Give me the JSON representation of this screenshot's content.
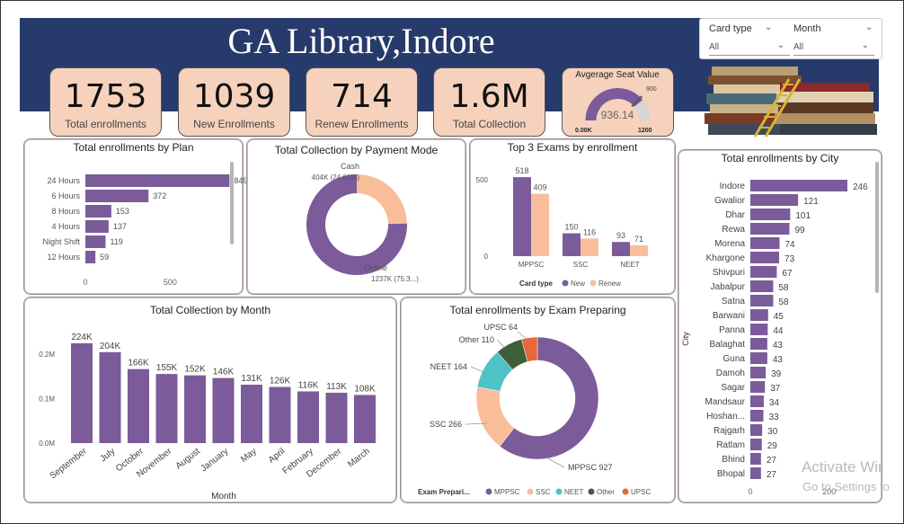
{
  "header": {
    "title": "GA Library,Indore"
  },
  "kpis": [
    {
      "value": "1753",
      "label": "Total enrollments"
    },
    {
      "value": "1039",
      "label": "New Enrollments"
    },
    {
      "value": "714",
      "label": "Renew Enrollments"
    },
    {
      "value": "1.6M",
      "label": "Total Collection"
    }
  ],
  "gauge": {
    "title": "Avgerage Seat Value",
    "value": 936.14,
    "value_label": "936.14",
    "min_label": "0.00K",
    "max_label": "1200",
    "target_label": "900",
    "min": 0,
    "max": 1200,
    "target": 900
  },
  "slicers": {
    "card_type": {
      "label": "Card type",
      "selected": "All"
    },
    "month": {
      "label": "Month",
      "selected": "All"
    }
  },
  "colors": {
    "primary": "#7b5b9a",
    "secondary": "#f9bd9a",
    "teal": "#4fc2c8",
    "green": "#3f5e3a",
    "orange": "#e8673b",
    "banner": "#263a6b",
    "card": "#f6d2bd"
  },
  "chart_data": [
    {
      "id": "plan",
      "type": "bar",
      "orientation": "horizontal",
      "title": "Total enrollments by Plan",
      "categories": [
        "24 Hours",
        "6 Hours",
        "8 Hours",
        "4 Hours",
        "Night Shift",
        "12 Hours"
      ],
      "values": [
        849,
        372,
        153,
        137,
        119,
        59
      ],
      "x_ticks": [
        "0",
        "500"
      ],
      "xlim": [
        0,
        900
      ]
    },
    {
      "id": "payment",
      "type": "pie",
      "subtype": "donut",
      "title": "Total Collection by Payment Mode",
      "slices": [
        {
          "name": "Online",
          "value": 1237,
          "label": "1237K (75.3...)"
        },
        {
          "name": "Cash",
          "value": 404,
          "label": "404K (24.61%)"
        }
      ]
    },
    {
      "id": "exams",
      "type": "bar",
      "title": "Top 3 Exams by enrollment",
      "categories": [
        "MPPSC",
        "SSC",
        "NEET"
      ],
      "series": [
        {
          "name": "New",
          "values": [
            518,
            150,
            93
          ]
        },
        {
          "name": "Renew",
          "values": [
            409,
            116,
            71
          ]
        }
      ],
      "y_ticks": [
        "0",
        "500"
      ],
      "ylim": [
        0,
        560
      ],
      "legend_title": "Card type",
      "legend_position": "bottom"
    },
    {
      "id": "city",
      "type": "bar",
      "orientation": "horizontal",
      "title": "Total enrollments by City",
      "ylabel": "City",
      "categories": [
        "Indore",
        "Gwalior",
        "Dhar",
        "Rewa",
        "Morena",
        "Khargone",
        "Shivpuri",
        "Jabalpur",
        "Satna",
        "Barwani",
        "Panna",
        "Balaghat",
        "Guna",
        "Damoh",
        "Sagar",
        "Mandsaur",
        "Hoshan...",
        "Rajgarh",
        "Ratlam",
        "Bhind",
        "Bhopal"
      ],
      "values": [
        246,
        121,
        101,
        99,
        74,
        73,
        67,
        58,
        58,
        45,
        44,
        43,
        43,
        39,
        37,
        34,
        33,
        30,
        29,
        27,
        27
      ],
      "x_ticks": [
        "0",
        "200"
      ],
      "xlim": [
        0,
        260
      ]
    },
    {
      "id": "month",
      "type": "bar",
      "title": "Total Collection by Month",
      "xlabel": "Month",
      "categories": [
        "September",
        "July",
        "October",
        "November",
        "August",
        "January",
        "May",
        "April",
        "February",
        "December",
        "March"
      ],
      "values": [
        224,
        204,
        166,
        155,
        152,
        146,
        131,
        126,
        116,
        113,
        108
      ],
      "data_labels": [
        "224K",
        "204K",
        "166K",
        "155K",
        "152K",
        "146K",
        "131K",
        "126K",
        "116K",
        "113K",
        "108K"
      ],
      "y_ticks": [
        "0.0M",
        "0.1M",
        "0.2M"
      ],
      "ylim": [
        0,
        250
      ]
    },
    {
      "id": "exam_prep",
      "type": "pie",
      "subtype": "donut",
      "title": "Total enrollments by Exam Preparing",
      "slices": [
        {
          "name": "MPPSC",
          "value": 927,
          "label": "MPPSC 927"
        },
        {
          "name": "SSC",
          "value": 266,
          "label": "SSC 266"
        },
        {
          "name": "NEET",
          "value": 164,
          "label": "NEET 164"
        },
        {
          "name": "Other",
          "value": 110,
          "label": "Other 110"
        },
        {
          "name": "UPSC",
          "value": 64,
          "label": "UPSC 64"
        }
      ],
      "legend_title": "Exam Prepari...",
      "legend_position": "bottom"
    }
  ],
  "watermark": {
    "line1": "Activate Wir",
    "line2": "Go to Settings to"
  }
}
